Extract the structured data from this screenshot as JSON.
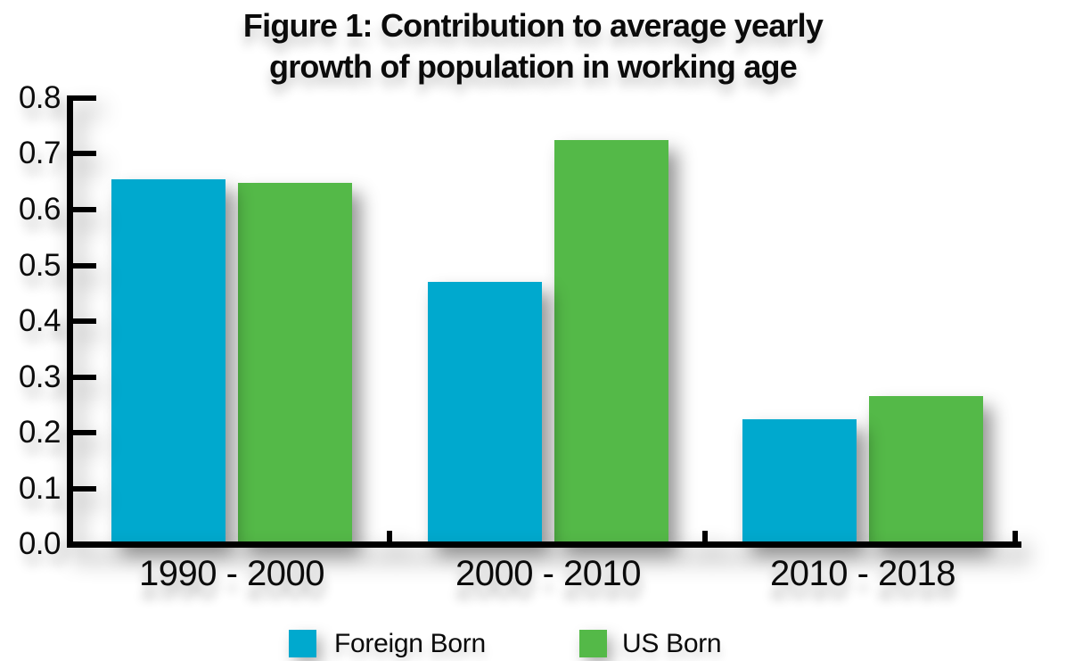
{
  "title": {
    "line1": "Figure 1: Contribution to average yearly",
    "line2": "growth of population in working age"
  },
  "colors": {
    "foreign_born": "#00A9CE",
    "us_born": "#54B948",
    "axis": "#000000",
    "text": "#0b0b0b",
    "background": "#ffffff"
  },
  "chart_data": {
    "type": "bar",
    "title": "Figure 1: Contribution to average yearly growth of population in working age",
    "categories": [
      "1990 - 2000",
      "2000 - 2010",
      "2010 - 2018"
    ],
    "series": [
      {
        "name": "Foreign Born",
        "color": "#00A9CE",
        "values": [
          0.655,
          0.47,
          0.224
        ]
      },
      {
        "name": "US Born",
        "color": "#54B948",
        "values": [
          0.648,
          0.725,
          0.266
        ]
      }
    ],
    "xlabel": "",
    "ylabel": "",
    "ylim": [
      0.0,
      0.8
    ],
    "ytick_step": 0.1,
    "ytick_labels": [
      "0.0",
      "0.1",
      "0.2",
      "0.3",
      "0.4",
      "0.5",
      "0.6",
      "0.7",
      "0.8"
    ],
    "grid": false,
    "legend_position": "bottom"
  },
  "legend": {
    "items": [
      {
        "label": "Foreign Born",
        "color": "#00A9CE"
      },
      {
        "label": "US Born",
        "color": "#54B948"
      }
    ]
  }
}
